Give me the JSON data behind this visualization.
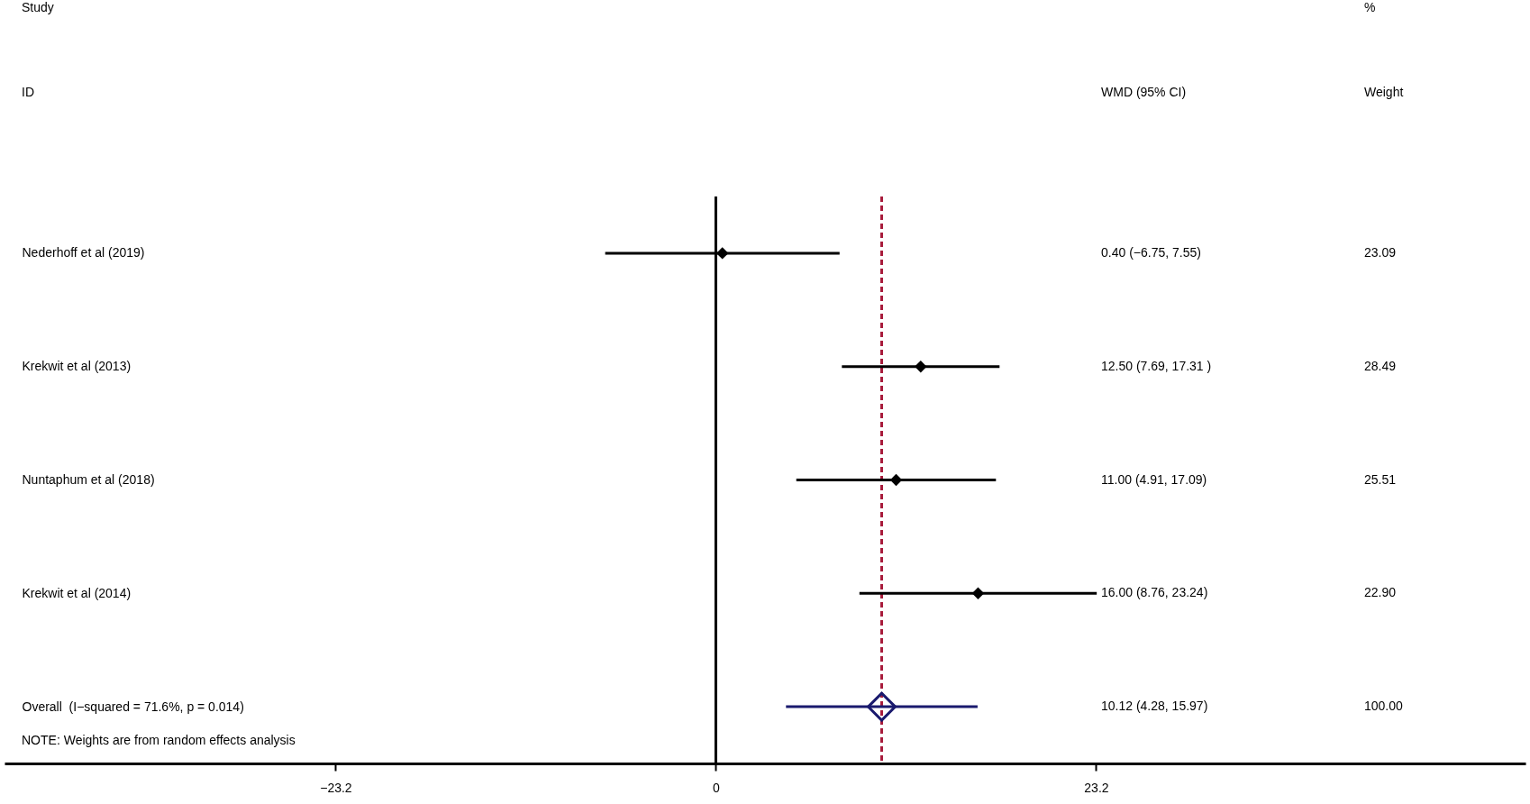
{
  "chart_data": {
    "type": "scatter",
    "orientation": "horizontal",
    "categories": [
      "Nederhoff et al (2019)",
      "Krekwit et al (2013)",
      "Nuntaphum et al (2018)",
      "Krekwit et al (2014)",
      "Overall  (I−squared = 71.6%, p = 0.014)"
    ],
    "series": [
      {
        "color": "#000000",
        "values": [
          0.4,
          12.5,
          11.0,
          16.0,
          null
        ],
        "errors": [
          [
            -6.75,
            7.55
          ],
          [
            7.69,
            17.31
          ],
          [
            4.91,
            17.09
          ],
          [
            8.76,
            23.24
          ],
          null
        ]
      },
      {
        "color": "#1a1a6e",
        "values": [
          null,
          null,
          null,
          null,
          10.12
        ],
        "errors": [
          null,
          null,
          null,
          null,
          [
            4.28,
            15.97
          ]
        ]
      }
    ],
    "marker": "diamond",
    "xlim": [
      -43.4,
      49.4
    ],
    "xticks": [
      {
        "value": -23.2,
        "label": "−23.2"
      },
      0,
      23.2
    ],
    "grid": false,
    "ref_lines": [
      {
        "axis": "x",
        "value": 0,
        "color": "#000000",
        "line_style": "solid"
      },
      {
        "axis": "x",
        "value": 10.12,
        "color": "#a81c3c",
        "line_style": "dashed"
      }
    ],
    "annotations": [
      "Study",
      "ID",
      "%",
      "WMD (95% CI)",
      "Weight",
      "NOTE: Weights are from random effects analysis",
      "23.09",
      "28.49",
      "25.51",
      "22.90",
      "100.00",
      "0.40 (−6.75, 7.55)",
      "12.50 (7.69, 17.31 )",
      "11.00 (4.91, 17.09)",
      "16.00 (8.76, 23.24)",
      "10.12 (4.28, 15.97)"
    ]
  }
}
